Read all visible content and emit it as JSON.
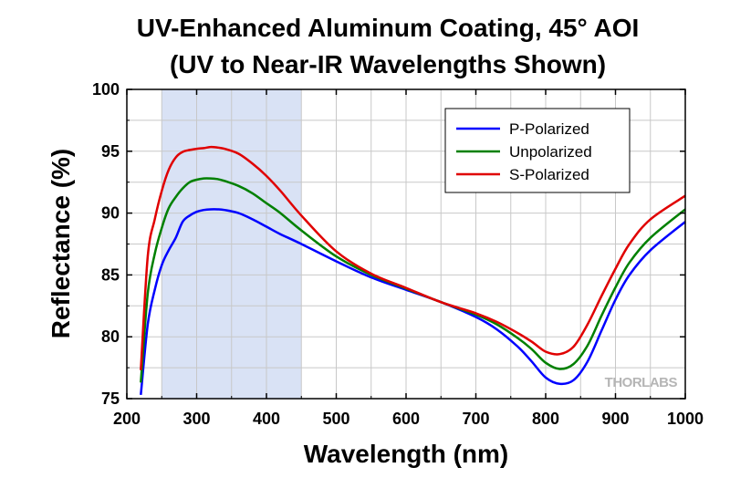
{
  "chart_data": {
    "type": "line",
    "title": "UV-Enhanced Aluminum Coating, 45° AOI",
    "subtitle": "(UV to Near-IR Wavelengths Shown)",
    "xlabel": "Wavelength (nm)",
    "ylabel": "Reflectance (%)",
    "xlim": [
      200,
      1000
    ],
    "ylim": [
      75,
      100
    ],
    "xticks": [
      200,
      300,
      400,
      500,
      600,
      700,
      800,
      900,
      1000
    ],
    "yticks": [
      75,
      80,
      85,
      90,
      95,
      100
    ],
    "grid": true,
    "legend_position": "top-right",
    "highlight_band": {
      "from": 250,
      "to": 450,
      "color": "#d9e2f5"
    },
    "watermark": "THORLABS",
    "series": [
      {
        "name": "P-Polarized",
        "color": "#0000ff",
        "x": [
          220,
          230,
          240,
          250,
          260,
          270,
          280,
          290,
          300,
          310,
          320,
          330,
          340,
          360,
          380,
          400,
          420,
          450,
          500,
          550,
          600,
          650,
          700,
          730,
          760,
          780,
          800,
          820,
          840,
          860,
          880,
          900,
          920,
          950,
          1000
        ],
        "y": [
          75.3,
          81.0,
          83.8,
          85.8,
          87.0,
          88.0,
          89.3,
          89.8,
          90.1,
          90.25,
          90.3,
          90.3,
          90.25,
          90.0,
          89.5,
          88.9,
          88.3,
          87.5,
          86.1,
          84.8,
          83.8,
          82.8,
          81.6,
          80.6,
          79.2,
          78.0,
          76.7,
          76.2,
          76.5,
          78.0,
          80.5,
          83.0,
          85.0,
          87.0,
          89.3
        ]
      },
      {
        "name": "Unpolarized",
        "color": "#008000",
        "x": [
          220,
          230,
          240,
          250,
          260,
          270,
          280,
          290,
          300,
          310,
          320,
          330,
          340,
          360,
          380,
          400,
          420,
          450,
          500,
          550,
          600,
          650,
          700,
          730,
          760,
          780,
          800,
          820,
          840,
          860,
          880,
          900,
          920,
          950,
          1000
        ],
        "y": [
          76.3,
          83.5,
          86.7,
          88.8,
          90.4,
          91.3,
          92.0,
          92.5,
          92.7,
          92.8,
          92.8,
          92.75,
          92.6,
          92.2,
          91.6,
          90.8,
          90.0,
          88.6,
          86.5,
          85.0,
          83.9,
          82.8,
          81.8,
          81.0,
          79.9,
          79.0,
          77.9,
          77.4,
          77.8,
          79.3,
          81.7,
          84.0,
          86.0,
          88.0,
          90.3
        ]
      },
      {
        "name": "S-Polarized",
        "color": "#e00000",
        "x": [
          220,
          230,
          240,
          250,
          260,
          270,
          280,
          290,
          300,
          310,
          320,
          330,
          340,
          360,
          380,
          400,
          420,
          450,
          500,
          550,
          600,
          650,
          700,
          730,
          760,
          780,
          800,
          820,
          840,
          860,
          880,
          900,
          920,
          950,
          1000
        ],
        "y": [
          77.3,
          86.5,
          89.5,
          91.8,
          93.5,
          94.5,
          94.95,
          95.1,
          95.2,
          95.25,
          95.35,
          95.3,
          95.2,
          94.8,
          94.0,
          93.0,
          91.8,
          89.8,
          86.9,
          85.1,
          83.95,
          82.8,
          81.9,
          81.2,
          80.3,
          79.6,
          78.8,
          78.6,
          79.2,
          81.0,
          83.3,
          85.5,
          87.5,
          89.5,
          91.4
        ]
      }
    ]
  }
}
